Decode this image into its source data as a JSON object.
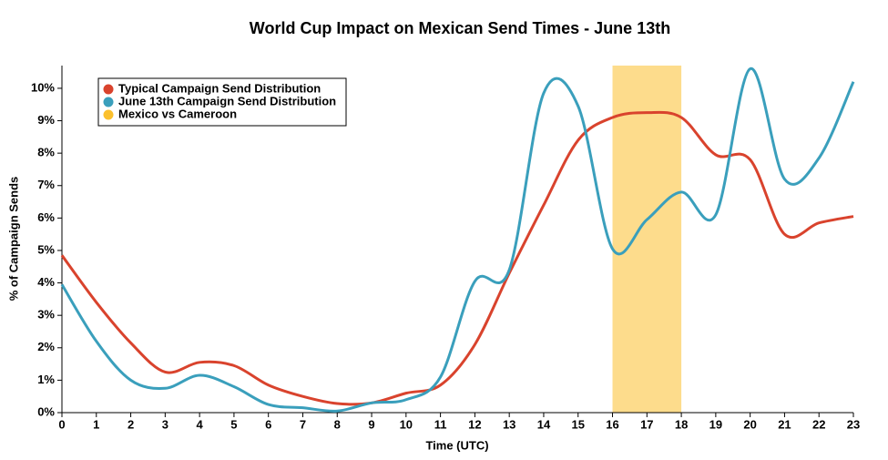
{
  "chart_data": {
    "type": "line",
    "title": "World Cup Impact on Mexican Send Times - June 13th",
    "x_label": "Time (UTC)",
    "y_label": "% of Campaign Sends",
    "x": [
      0,
      1,
      2,
      3,
      4,
      5,
      6,
      7,
      8,
      9,
      10,
      11,
      12,
      13,
      14,
      15,
      16,
      17,
      18,
      19,
      20,
      21,
      22,
      23
    ],
    "xlim": [
      0,
      23
    ],
    "xticks": [
      0,
      1,
      2,
      3,
      4,
      5,
      6,
      7,
      8,
      9,
      10,
      11,
      12,
      13,
      14,
      15,
      16,
      17,
      18,
      19,
      20,
      21,
      22,
      23
    ],
    "ylim": [
      0,
      10.7
    ],
    "yticks": [
      {
        "value": 0,
        "label": "0%"
      },
      {
        "value": 1,
        "label": "1%"
      },
      {
        "value": 2,
        "label": "2%"
      },
      {
        "value": 3,
        "label": "3%"
      },
      {
        "value": 4,
        "label": "4%"
      },
      {
        "value": 5,
        "label": "5%"
      },
      {
        "value": 6,
        "label": "6%"
      },
      {
        "value": 7,
        "label": "7%"
      },
      {
        "value": 8,
        "label": "8%"
      },
      {
        "value": 9,
        "label": "9%"
      },
      {
        "value": 10,
        "label": "10%"
      }
    ],
    "series": [
      {
        "name": "Typical Campaign Send Distribution",
        "color": "#d9432d",
        "values": [
          4.85,
          3.4,
          2.15,
          1.25,
          1.55,
          1.45,
          0.85,
          0.5,
          0.28,
          0.3,
          0.6,
          0.85,
          2.1,
          4.3,
          6.4,
          8.4,
          9.1,
          9.25,
          9.1,
          7.95,
          7.8,
          5.5,
          5.85,
          6.05
        ]
      },
      {
        "name": "June 13th Campaign Send Distribution",
        "color": "#3a9fbc",
        "values": [
          3.95,
          2.2,
          1.0,
          0.75,
          1.15,
          0.8,
          0.25,
          0.15,
          0.05,
          0.3,
          0.4,
          1.1,
          4.05,
          4.4,
          9.85,
          9.45,
          5.05,
          5.95,
          6.8,
          6.1,
          10.6,
          7.2,
          7.85,
          10.2
        ]
      }
    ],
    "highlight": {
      "name": "Mexico vs Cameroon",
      "color": "#fbc02d",
      "x": [
        16,
        18
      ]
    },
    "legend": "top-left"
  }
}
